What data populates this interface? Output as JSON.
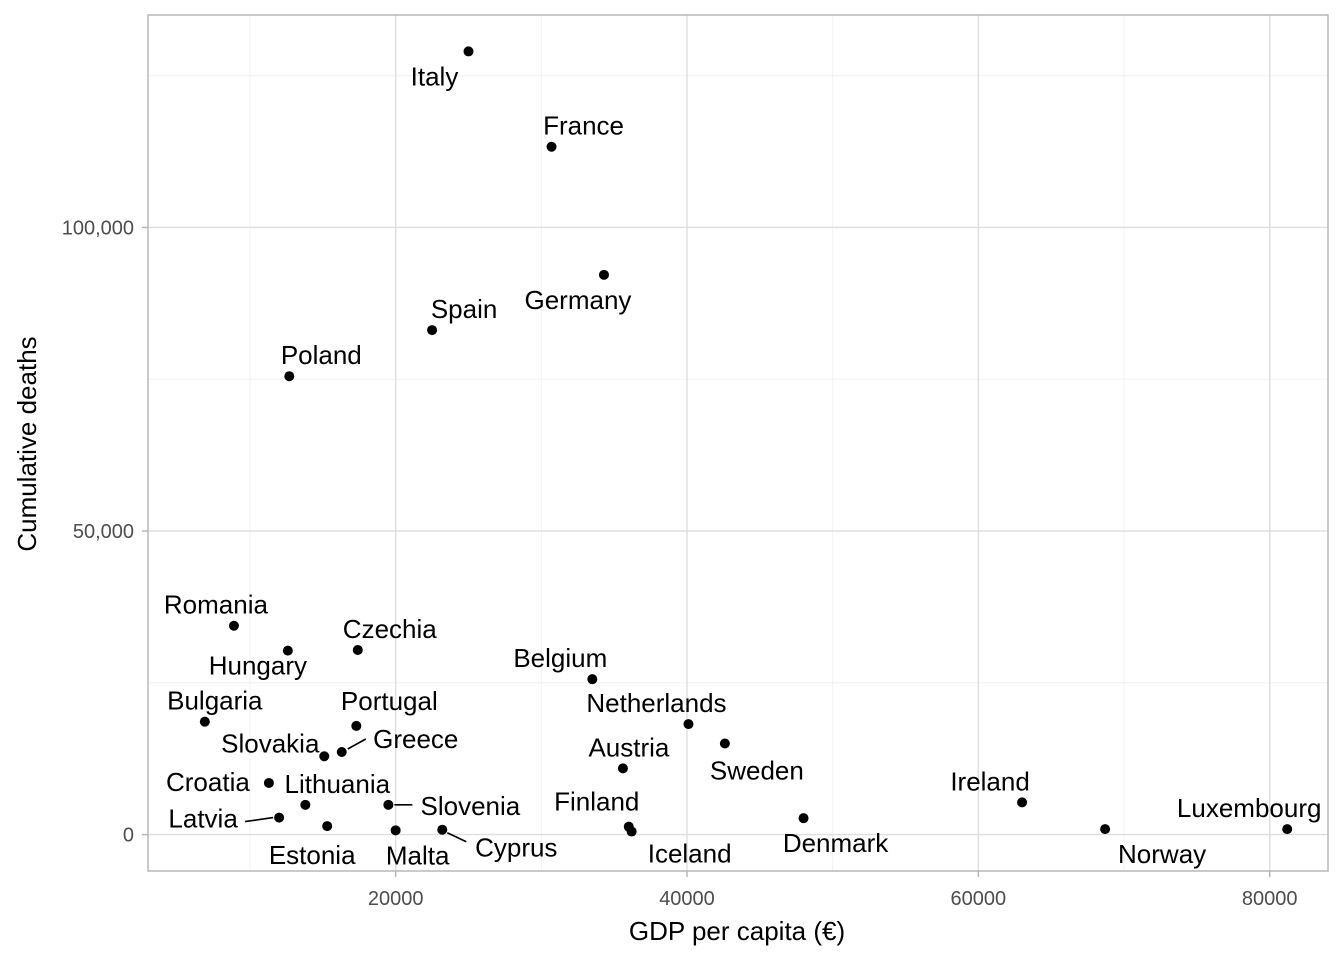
{
  "chart_data": {
    "type": "scatter",
    "xlabel": "GDP per capita (€)",
    "ylabel": "Cumulative deaths",
    "xlim": [
      3000,
      84000
    ],
    "ylim": [
      -6000,
      135000
    ],
    "x_ticks": [
      20000,
      40000,
      60000,
      80000
    ],
    "x_tick_labels": [
      "20000",
      "40000",
      "60000",
      "80000"
    ],
    "y_ticks": [
      0,
      50000,
      100000
    ],
    "y_tick_labels": [
      "0",
      "50,000",
      "100,000"
    ],
    "grid": true,
    "points": [
      {
        "label": "Italy",
        "x": 25000,
        "y": 129000
      },
      {
        "label": "France",
        "x": 30700,
        "y": 113300
      },
      {
        "label": "Germany",
        "x": 34300,
        "y": 92200
      },
      {
        "label": "Spain",
        "x": 22500,
        "y": 83100
      },
      {
        "label": "Poland",
        "x": 12700,
        "y": 75500
      },
      {
        "label": "Romania",
        "x": 8900,
        "y": 34400
      },
      {
        "label": "Hungary",
        "x": 12600,
        "y": 30300
      },
      {
        "label": "Czechia",
        "x": 17400,
        "y": 30400
      },
      {
        "label": "Belgium",
        "x": 33500,
        "y": 25600
      },
      {
        "label": "Bulgaria",
        "x": 6900,
        "y": 18600
      },
      {
        "label": "Portugal",
        "x": 17300,
        "y": 17900
      },
      {
        "label": "Netherlands",
        "x": 40100,
        "y": 18200
      },
      {
        "label": "Sweden",
        "x": 42600,
        "y": 15000
      },
      {
        "label": "Slovakia",
        "x": 15100,
        "y": 12900
      },
      {
        "label": "Greece",
        "x": 16300,
        "y": 13600
      },
      {
        "label": "Austria",
        "x": 35600,
        "y": 10900
      },
      {
        "label": "Croatia",
        "x": 11300,
        "y": 8500
      },
      {
        "label": "Lithuania",
        "x": 13800,
        "y": 4900
      },
      {
        "label": "Slovenia",
        "x": 19500,
        "y": 4900
      },
      {
        "label": "Ireland",
        "x": 63000,
        "y": 5300
      },
      {
        "label": "Latvia",
        "x": 12000,
        "y": 2800
      },
      {
        "label": "Denmark",
        "x": 48000,
        "y": 2700
      },
      {
        "label": "Estonia",
        "x": 15300,
        "y": 1400
      },
      {
        "label": "Malta",
        "x": 20000,
        "y": 700
      },
      {
        "label": "Cyprus",
        "x": 23200,
        "y": 800
      },
      {
        "label": "Finland",
        "x": 36000,
        "y": 1300
      },
      {
        "label": "Iceland",
        "x": 36200,
        "y": 500
      },
      {
        "label": "Norway",
        "x": 68700,
        "y": 900
      },
      {
        "label": "Luxembourg",
        "x": 81200,
        "y": 900
      }
    ]
  }
}
